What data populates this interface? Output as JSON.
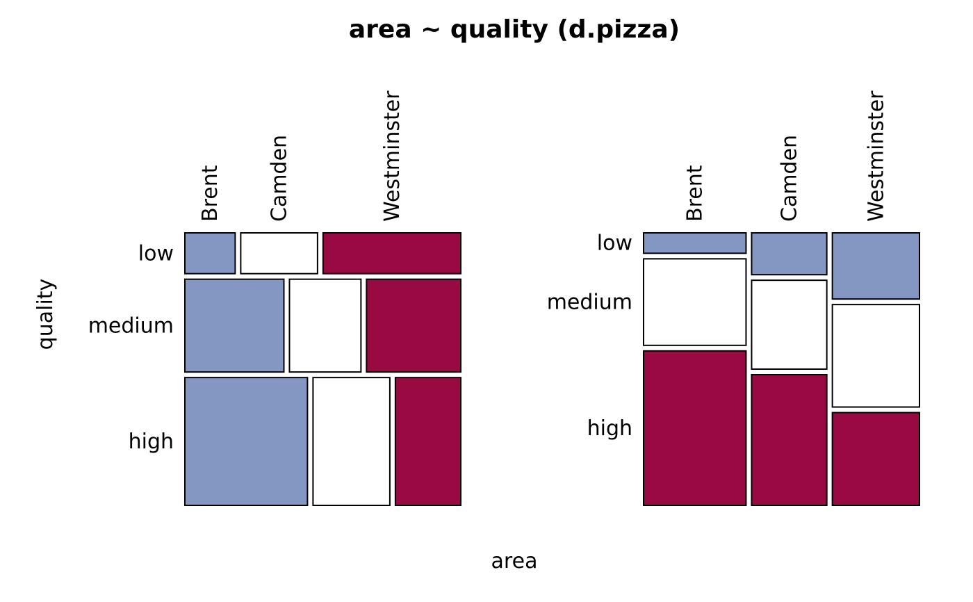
{
  "chart_data": {
    "type": "mosaic",
    "title": "area ~ quality (d.pizza)",
    "xlabel": "area",
    "ylabel": "quality",
    "areas": [
      "Brent",
      "Camden",
      "Westminster"
    ],
    "qualities": [
      "low",
      "medium",
      "high"
    ],
    "colors": {
      "Brent": "#8497C3",
      "Camden": "#FFFFFF",
      "Westminster": "#990A42",
      "low": "#8497C3",
      "medium": "#FFFFFF",
      "high": "#990A42"
    },
    "panels": [
      {
        "conditioning": "quality",
        "rows": [
          {
            "quality": "low",
            "row_share": 0.156,
            "area_shares": [
              0.19,
              0.29,
              0.52
            ]
          },
          {
            "quality": "medium",
            "row_share": 0.355,
            "area_shares": [
              0.374,
              0.27,
              0.356
            ]
          },
          {
            "quality": "high",
            "row_share": 0.489,
            "area_shares": [
              0.463,
              0.29,
              0.247
            ]
          }
        ]
      },
      {
        "conditioning": "area",
        "columns": [
          {
            "area": "Brent",
            "col_share": 0.387,
            "quality_shares": [
              0.078,
              0.331,
              0.591
            ]
          },
          {
            "area": "Camden",
            "col_share": 0.284,
            "quality_shares": [
              0.16,
              0.34,
              0.5
            ]
          },
          {
            "area": "Westminster",
            "col_share": 0.329,
            "quality_shares": [
              0.253,
              0.392,
              0.355
            ]
          }
        ]
      }
    ]
  }
}
